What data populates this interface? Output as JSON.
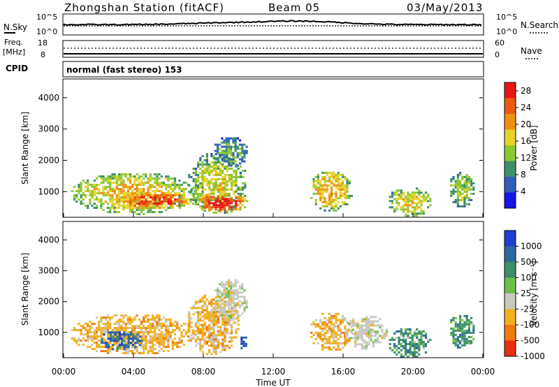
{
  "header": {
    "title": "Zhongshan Station (fitACF)",
    "beam": "Beam 05",
    "date": "03/May/2013"
  },
  "status_panel": {
    "nsky_label": "N.Sky",
    "nsky_ticks": [
      "10^5",
      "10^0"
    ],
    "nsearch_label": "N.Search",
    "nsearch_ticks": [
      "10^5",
      "10^0"
    ],
    "freq_label_line1": "Freq.",
    "freq_label_line2": "[MHz]",
    "freq_ticks": [
      "18",
      "8"
    ],
    "nave_label": "Nave",
    "nave_ticks": [
      "60",
      "0"
    ],
    "cpid_label": "CPID",
    "cpid_text": "normal (fast stereo) 153"
  },
  "chart_data": [
    {
      "type": "heatmap",
      "name": "power",
      "xlabel": "",
      "ylabel": "Slant Range [km]",
      "y_ticks": [
        "1000",
        "2000",
        "3000",
        "4000"
      ],
      "ylim": [
        180,
        4600
      ],
      "colorbar_label": "Power [dB]",
      "colorbar_ticks": [
        "4",
        "8",
        "12",
        "16",
        "20",
        "24",
        "28"
      ],
      "colorbar_range": [
        0,
        30
      ],
      "colors": [
        "#1515e8",
        "#2f5fb8",
        "#3d8f6a",
        "#8cc832",
        "#e8d22a",
        "#ee9015",
        "#e85a10",
        "#e81515"
      ],
      "blobs": [
        {
          "t": [
            0.3,
            7.5
          ],
          "r": [
            300,
            1650
          ],
          "level": 16
        },
        {
          "t": [
            3.0,
            7.5
          ],
          "r": [
            450,
            1050
          ],
          "level": 24
        },
        {
          "t": [
            7.0,
            10.5
          ],
          "r": [
            300,
            2300
          ],
          "level": 13
        },
        {
          "t": [
            7.5,
            10.5
          ],
          "r": [
            350,
            1000
          ],
          "level": 26
        },
        {
          "t": [
            8.5,
            10.5
          ],
          "r": [
            1800,
            2800
          ],
          "level": 8
        },
        {
          "t": [
            14.0,
            16.5
          ],
          "r": [
            400,
            1700
          ],
          "level": 17
        },
        {
          "t": [
            18.5,
            21.0
          ],
          "r": [
            200,
            1200
          ],
          "level": 15
        },
        {
          "t": [
            22.0,
            23.5
          ],
          "r": [
            500,
            1700
          ],
          "level": 12
        }
      ]
    },
    {
      "type": "heatmap",
      "name": "velocity",
      "xlabel": "Time UT",
      "ylabel": "Slant Range [km]",
      "x_ticks": [
        "00:00",
        "04:00",
        "08:00",
        "12:00",
        "16:00",
        "20:00",
        "00:00"
      ],
      "xlim_hours": [
        0,
        24
      ],
      "y_ticks": [
        "1000",
        "2000",
        "3000",
        "4000"
      ],
      "ylim": [
        180,
        4600
      ],
      "colorbar_label": "Velocity [m s⁻¹]",
      "colorbar_ticks": [
        "1000",
        "500",
        "100",
        "25",
        "-25",
        "-100",
        "-500",
        "-1000"
      ],
      "colors": [
        "#1f3fd0",
        "#2a6aa0",
        "#3d8f6a",
        "#6cc04a",
        "#c8c8c0",
        "#f2b020",
        "#ee7a10",
        "#e83010"
      ],
      "blobs": [
        {
          "t": [
            0.3,
            7.5
          ],
          "r": [
            300,
            1650
          ],
          "class": -100
        },
        {
          "t": [
            2.0,
            4.5
          ],
          "r": [
            450,
            1100
          ],
          "class": 500
        },
        {
          "t": [
            7.0,
            10.0
          ],
          "r": [
            300,
            2300
          ],
          "class": -100
        },
        {
          "t": [
            8.5,
            10.5
          ],
          "r": [
            1400,
            2800
          ],
          "class": 0
        },
        {
          "t": [
            10.0,
            10.5
          ],
          "r": [
            400,
            1000
          ],
          "class": 1000
        },
        {
          "t": [
            14.0,
            16.5
          ],
          "r": [
            400,
            1700
          ],
          "class": -100
        },
        {
          "t": [
            16.0,
            18.5
          ],
          "r": [
            500,
            1600
          ],
          "class": 0
        },
        {
          "t": [
            18.5,
            21.0
          ],
          "r": [
            200,
            1200
          ],
          "class": 100
        },
        {
          "t": [
            22.0,
            23.5
          ],
          "r": [
            500,
            1700
          ],
          "class": 100
        }
      ]
    }
  ]
}
